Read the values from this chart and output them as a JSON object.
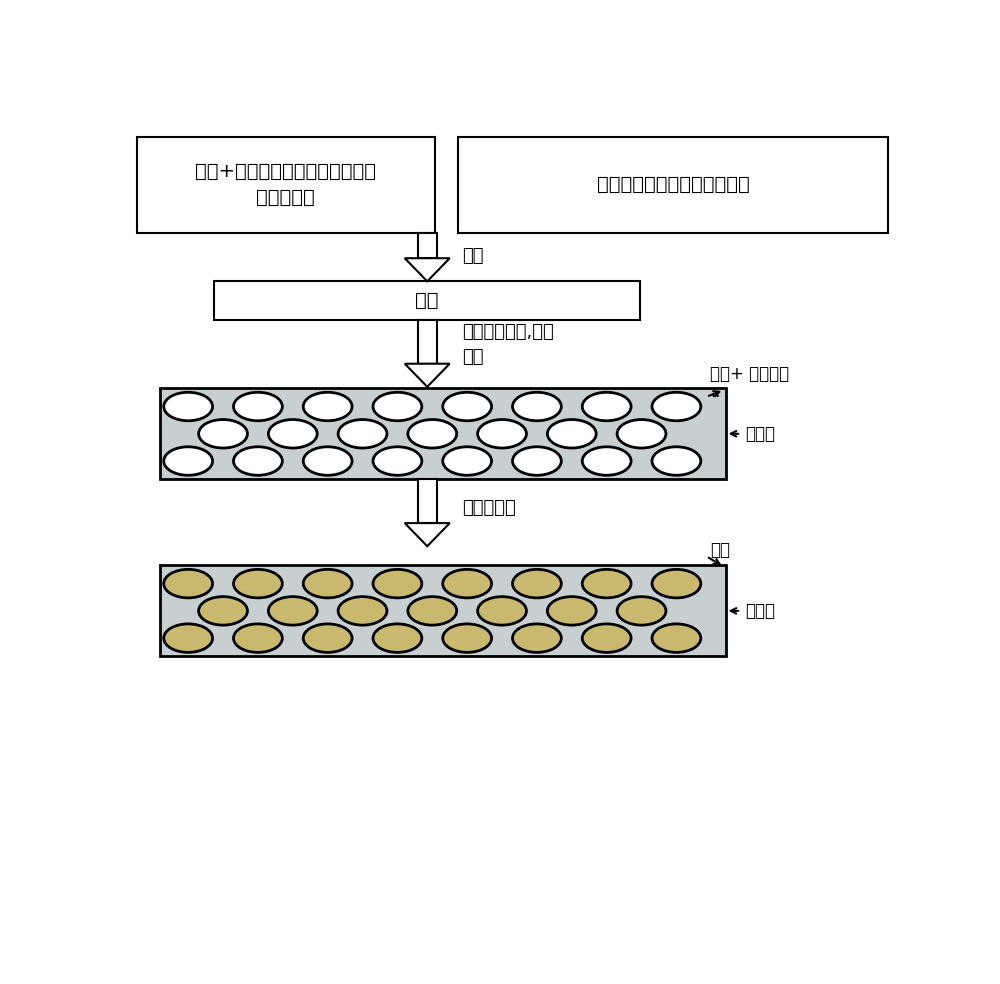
{
  "bg_color": "#ffffff",
  "box1_text": "液晶+非极性挥发性有机溶剂（例\n如，辛烷）",
  "box2_text": "水、表面活性剂、聚合物乳胶",
  "emulsion_box_text": "乳液",
  "label_emulsify": "乳化",
  "label_coat": "涂覆于基板上,使水\n蒸发",
  "label_evaporate": "使溶剂蒸发",
  "label_lc_solvent": "液晶+ 溶剂混合",
  "label_dots": "..",
  "label_polymer1": "聚合物",
  "label_lc": "液晶",
  "label_polymer2": "聚合物",
  "box_border_color": "#000000",
  "arrow_color": "#000000",
  "rect1_fill": "#c8cfd0",
  "rect1_border": "#000000",
  "ellipse1_fill": "#ffffff",
  "ellipse1_border": "#000000",
  "rect2_fill": "#c8cfd0",
  "rect2_border": "#000000",
  "ellipse2_fill": "#c8b96e",
  "ellipse2_border": "#000000",
  "font_size_box": 14,
  "font_size_label": 13,
  "font_size_annot": 12
}
